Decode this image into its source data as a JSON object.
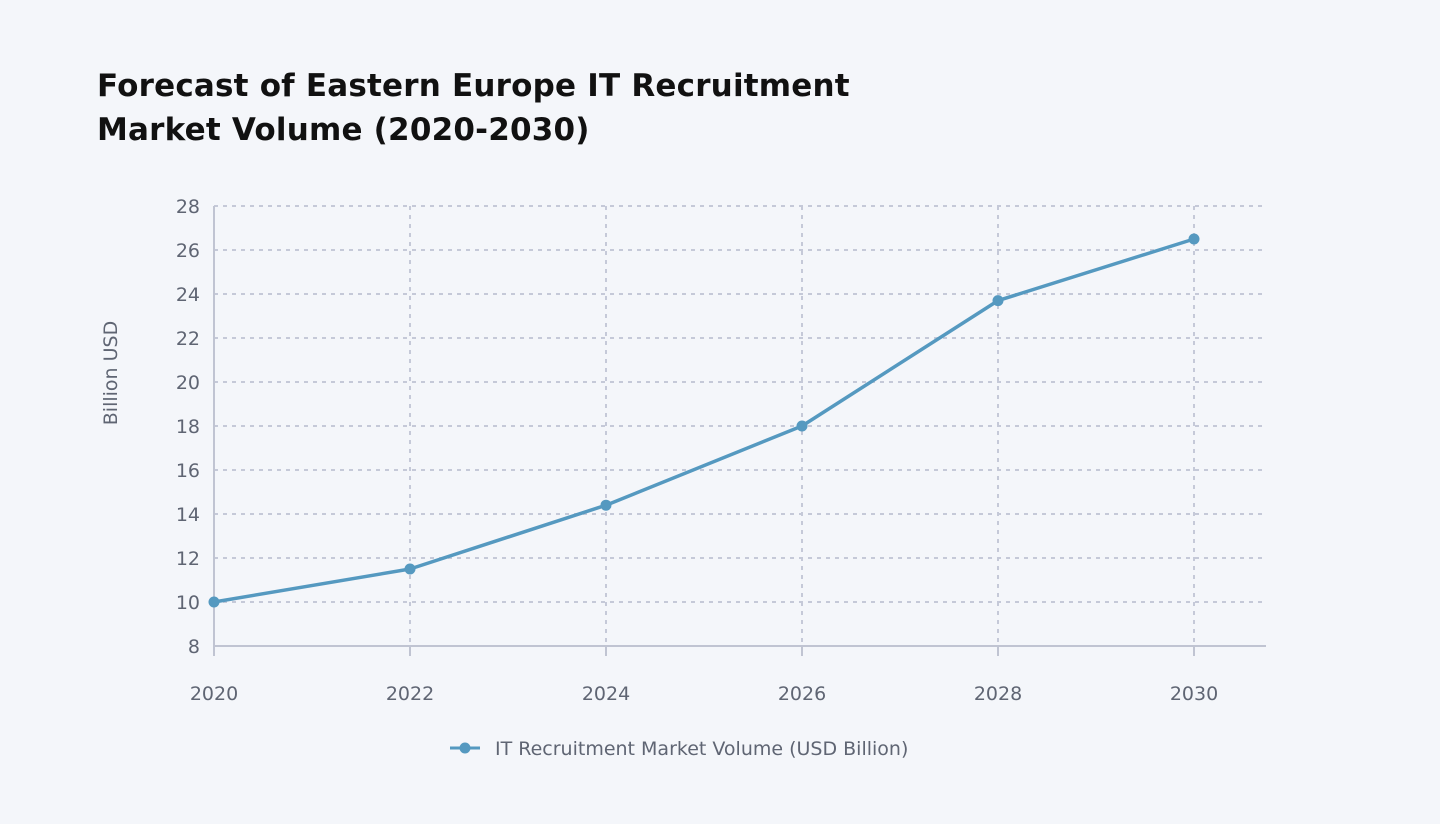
{
  "chart_data": {
    "type": "line",
    "title_lines": [
      "Forecast of Eastern Europe IT Recruitment",
      "Market Volume (2020-2030)"
    ],
    "xlabel": "",
    "ylabel": "Billion USD",
    "x": [
      2020,
      2022,
      2024,
      2026,
      2028,
      2030
    ],
    "x_tick_labels": [
      "2020",
      "2022",
      "2024",
      "2026",
      "2028",
      "2030"
    ],
    "y_ticks": [
      8,
      10,
      12,
      14,
      16,
      18,
      20,
      22,
      24,
      26,
      28
    ],
    "xlim": [
      2020,
      2030
    ],
    "ylim": [
      8,
      28
    ],
    "grid": true,
    "legend_position": "bottom",
    "series": [
      {
        "name": "IT Recruitment Market Volume (USD Billion)",
        "color": "#5599c0",
        "values": [
          10.0,
          11.5,
          14.4,
          18.0,
          23.7,
          26.5
        ]
      }
    ],
    "colors": {
      "grid": "#c5c9d8",
      "axis": "#c0c4d2",
      "tick_text": "#5f6573",
      "background": "#f4f6fa"
    }
  }
}
